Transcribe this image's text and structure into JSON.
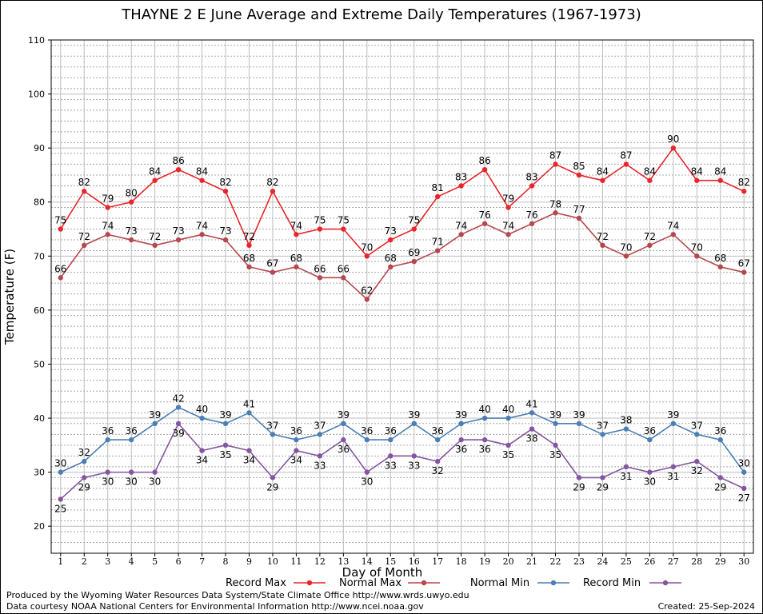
{
  "page": {
    "credit_line_1": "Produced by the Wyoming Water Resources Data System/State Climate Office http://www.wrds.uwyo.edu",
    "credit_line_2": "Data courtesy NOAA National Centers for Environmental Information http://www.ncei.noaa.gov",
    "created": "Created:  25-Sep-2024"
  },
  "chart_data": {
    "type": "line",
    "title": "THAYNE 2 E June Average and Extreme Daily Temperatures (1967-1973)",
    "xlabel": "Day of Month",
    "ylabel": "Temperature (F)",
    "x": [
      1,
      2,
      3,
      4,
      5,
      6,
      7,
      8,
      9,
      10,
      11,
      12,
      13,
      14,
      15,
      16,
      17,
      18,
      19,
      20,
      21,
      22,
      23,
      24,
      25,
      26,
      27,
      28,
      29,
      30
    ],
    "xlim": [
      0.6,
      30.4
    ],
    "ylim": [
      15,
      110
    ],
    "yticks": [
      20,
      30,
      40,
      50,
      60,
      70,
      80,
      90,
      100,
      110
    ],
    "grid": true,
    "legend_position": "bottom",
    "series": [
      {
        "name": "Record Max",
        "color": "#e8262b",
        "values": [
          75,
          82,
          79,
          80,
          84,
          86,
          84,
          82,
          72,
          82,
          74,
          75,
          75,
          70,
          73,
          75,
          81,
          83,
          86,
          79,
          83,
          87,
          85,
          84,
          87,
          84,
          90,
          84,
          84,
          82
        ]
      },
      {
        "name": "Normal Max",
        "color": "#b5484e",
        "values": [
          66,
          72,
          74,
          73,
          72,
          73,
          74,
          73,
          68,
          67,
          68,
          66,
          66,
          62,
          68,
          69,
          71,
          74,
          76,
          74,
          76,
          78,
          77,
          72,
          70,
          72,
          74,
          70,
          68,
          67
        ]
      },
      {
        "name": "Normal Min",
        "color": "#4b7fb4",
        "values": [
          30,
          32,
          36,
          36,
          39,
          42,
          40,
          39,
          41,
          37,
          36,
          37,
          39,
          36,
          36,
          39,
          36,
          39,
          40,
          40,
          41,
          39,
          39,
          37,
          38,
          36,
          39,
          37,
          36,
          30
        ]
      },
      {
        "name": "Record Min",
        "color": "#8556a0",
        "values": [
          25,
          29,
          30,
          30,
          30,
          39,
          34,
          35,
          34,
          29,
          34,
          33,
          36,
          30,
          33,
          33,
          32,
          36,
          36,
          35,
          38,
          35,
          29,
          29,
          31,
          30,
          31,
          32,
          29,
          27
        ]
      }
    ]
  }
}
